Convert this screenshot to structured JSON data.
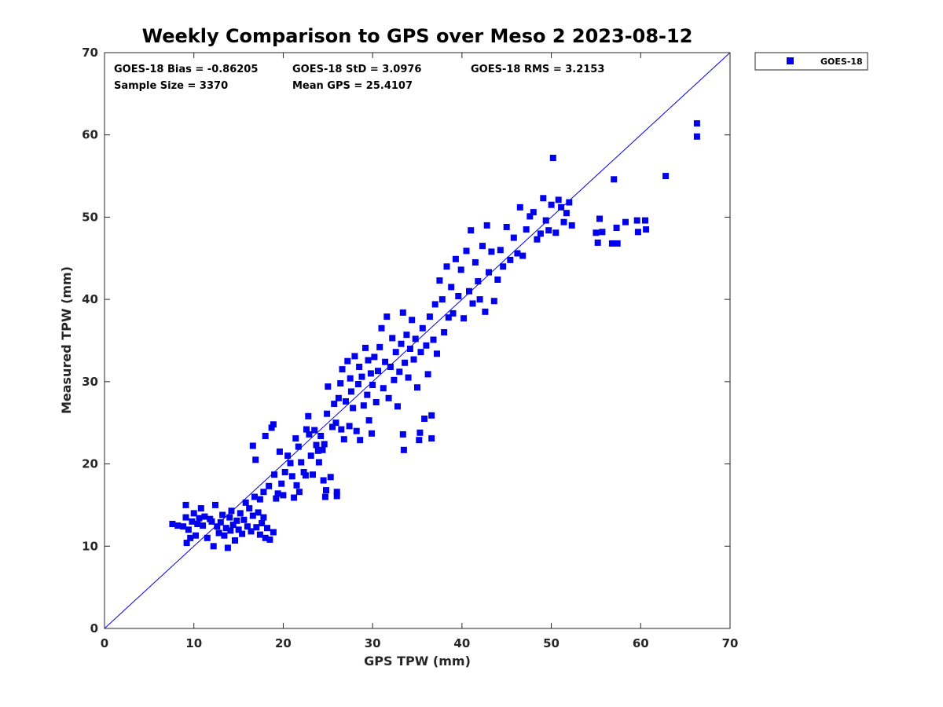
{
  "chart_data": {
    "type": "scatter",
    "title": "Weekly Comparison to GPS over Meso 2 2023-08-12",
    "xlabel": "GPS TPW (mm)",
    "ylabel": "Measured TPW (mm)",
    "xlim": [
      0,
      70
    ],
    "ylim": [
      0,
      70
    ],
    "xticks": [
      "0",
      "10",
      "20",
      "30",
      "40",
      "50",
      "60",
      "70"
    ],
    "yticks": [
      "0",
      "10",
      "20",
      "30",
      "40",
      "50",
      "60",
      "70"
    ],
    "grid": false,
    "legend": {
      "position": "outside-top-right",
      "entries": [
        "GOES-18"
      ]
    },
    "stats": {
      "bias": "GOES-18 Bias = -0.86205",
      "std": "GOES-18 StD = 3.0976",
      "rms": "GOES-18 RMS = 3.2153",
      "sample": "Sample Size = 3370",
      "mean": "Mean GPS = 25.4107"
    },
    "reference_line": {
      "label": "1:1",
      "x": [
        0,
        70
      ],
      "y": [
        0,
        70
      ]
    },
    "series": [
      {
        "name": "GOES-18",
        "color": "#0000ee",
        "marker": "square",
        "points": [
          [
            7.6,
            12.7
          ],
          [
            8.2,
            12.5
          ],
          [
            8.8,
            12.4
          ],
          [
            9.1,
            15.0
          ],
          [
            9.1,
            13.5
          ],
          [
            9.2,
            10.4
          ],
          [
            9.4,
            12.0
          ],
          [
            9.6,
            11.0
          ],
          [
            9.8,
            13.0
          ],
          [
            10.0,
            14.0
          ],
          [
            10.2,
            11.3
          ],
          [
            10.4,
            12.7
          ],
          [
            10.6,
            13.4
          ],
          [
            10.8,
            14.6
          ],
          [
            11.0,
            12.5
          ],
          [
            11.2,
            13.6
          ],
          [
            11.5,
            11.0
          ],
          [
            11.8,
            13.3
          ],
          [
            12.0,
            13.0
          ],
          [
            12.2,
            10.0
          ],
          [
            12.4,
            15.0
          ],
          [
            12.6,
            12.4
          ],
          [
            12.8,
            11.6
          ],
          [
            13.0,
            12.9
          ],
          [
            13.2,
            13.8
          ],
          [
            13.4,
            11.3
          ],
          [
            13.6,
            12.2
          ],
          [
            13.8,
            9.8
          ],
          [
            14.0,
            13.5
          ],
          [
            14.1,
            11.9
          ],
          [
            14.2,
            14.3
          ],
          [
            14.4,
            12.6
          ],
          [
            14.6,
            10.7
          ],
          [
            14.8,
            13.1
          ],
          [
            15.0,
            12.0
          ],
          [
            15.2,
            14.0
          ],
          [
            15.4,
            11.5
          ],
          [
            15.6,
            13.2
          ],
          [
            15.8,
            15.3
          ],
          [
            16.0,
            12.4
          ],
          [
            16.2,
            14.6
          ],
          [
            16.4,
            11.8
          ],
          [
            16.6,
            13.7
          ],
          [
            16.8,
            16.0
          ],
          [
            17.0,
            12.3
          ],
          [
            17.2,
            14.1
          ],
          [
            17.4,
            11.4
          ],
          [
            17.6,
            12.8
          ],
          [
            17.8,
            13.5
          ],
          [
            18.0,
            11.0
          ],
          [
            18.2,
            12.2
          ],
          [
            18.5,
            10.8
          ],
          [
            18.9,
            11.7
          ],
          [
            16.6,
            22.2
          ],
          [
            16.9,
            20.5
          ],
          [
            17.4,
            15.7
          ],
          [
            17.8,
            16.6
          ],
          [
            18.0,
            23.4
          ],
          [
            18.4,
            17.3
          ],
          [
            18.7,
            24.4
          ],
          [
            18.9,
            24.8
          ],
          [
            19.0,
            18.7
          ],
          [
            19.2,
            15.8
          ],
          [
            19.4,
            16.4
          ],
          [
            19.6,
            21.5
          ],
          [
            19.8,
            17.6
          ],
          [
            20.0,
            16.2
          ],
          [
            20.2,
            19.0
          ],
          [
            20.5,
            21.0
          ],
          [
            20.8,
            20.1
          ],
          [
            21.0,
            18.5
          ],
          [
            21.2,
            15.9
          ],
          [
            21.4,
            23.1
          ],
          [
            21.5,
            17.4
          ],
          [
            21.7,
            22.1
          ],
          [
            21.8,
            16.6
          ],
          [
            22.0,
            20.2
          ],
          [
            22.3,
            19.0
          ],
          [
            22.5,
            18.6
          ],
          [
            22.6,
            24.2
          ],
          [
            22.8,
            25.8
          ],
          [
            22.9,
            23.6
          ],
          [
            23.1,
            21.0
          ],
          [
            23.3,
            18.7
          ],
          [
            23.5,
            24.1
          ],
          [
            23.7,
            22.3
          ],
          [
            23.9,
            21.6
          ],
          [
            24.0,
            20.2
          ],
          [
            24.2,
            23.4
          ],
          [
            24.4,
            21.7
          ],
          [
            24.5,
            18.0
          ],
          [
            24.6,
            22.4
          ],
          [
            24.7,
            16.0
          ],
          [
            24.8,
            16.8
          ],
          [
            24.9,
            26.1
          ],
          [
            25.0,
            29.4
          ],
          [
            25.3,
            18.4
          ],
          [
            25.5,
            24.5
          ],
          [
            25.7,
            27.3
          ],
          [
            25.9,
            25.0
          ],
          [
            26.0,
            16.1
          ],
          [
            26.0,
            16.6
          ],
          [
            26.2,
            28.0
          ],
          [
            26.4,
            29.8
          ],
          [
            26.5,
            24.2
          ],
          [
            26.6,
            31.5
          ],
          [
            26.8,
            23.0
          ],
          [
            27.0,
            27.6
          ],
          [
            27.2,
            32.5
          ],
          [
            27.4,
            24.6
          ],
          [
            27.5,
            30.4
          ],
          [
            27.6,
            28.8
          ],
          [
            27.8,
            26.8
          ],
          [
            28.0,
            33.1
          ],
          [
            28.2,
            24.0
          ],
          [
            28.4,
            29.7
          ],
          [
            28.5,
            31.8
          ],
          [
            28.6,
            22.9
          ],
          [
            28.8,
            30.6
          ],
          [
            29.0,
            27.1
          ],
          [
            29.2,
            34.1
          ],
          [
            29.4,
            28.4
          ],
          [
            29.5,
            32.6
          ],
          [
            29.6,
            25.3
          ],
          [
            29.8,
            31.0
          ],
          [
            29.9,
            23.7
          ],
          [
            30.0,
            29.6
          ],
          [
            30.2,
            33.0
          ],
          [
            30.4,
            27.5
          ],
          [
            30.6,
            31.3
          ],
          [
            30.8,
            34.2
          ],
          [
            31.0,
            36.5
          ],
          [
            31.2,
            29.2
          ],
          [
            31.4,
            32.4
          ],
          [
            31.6,
            37.9
          ],
          [
            31.8,
            28.0
          ],
          [
            32.0,
            31.8
          ],
          [
            32.2,
            35.3
          ],
          [
            32.4,
            30.2
          ],
          [
            32.6,
            33.6
          ],
          [
            32.8,
            27.0
          ],
          [
            33.0,
            31.2
          ],
          [
            33.2,
            34.6
          ],
          [
            33.4,
            38.4
          ],
          [
            33.6,
            32.3
          ],
          [
            33.8,
            35.7
          ],
          [
            33.4,
            23.6
          ],
          [
            33.5,
            21.7
          ],
          [
            34.0,
            30.5
          ],
          [
            34.2,
            34.0
          ],
          [
            34.4,
            37.5
          ],
          [
            34.6,
            32.7
          ],
          [
            34.8,
            35.2
          ],
          [
            35.0,
            29.3
          ],
          [
            35.2,
            22.9
          ],
          [
            35.3,
            23.8
          ],
          [
            35.4,
            33.6
          ],
          [
            35.6,
            36.5
          ],
          [
            35.8,
            25.5
          ],
          [
            36.0,
            34.4
          ],
          [
            36.2,
            30.9
          ],
          [
            36.4,
            37.9
          ],
          [
            36.6,
            23.1
          ],
          [
            36.6,
            25.9
          ],
          [
            36.8,
            35.1
          ],
          [
            37.0,
            39.4
          ],
          [
            37.2,
            33.4
          ],
          [
            37.5,
            42.3
          ],
          [
            37.8,
            40.0
          ],
          [
            38.0,
            36.0
          ],
          [
            38.3,
            44.0
          ],
          [
            38.5,
            37.8
          ],
          [
            38.8,
            41.5
          ],
          [
            39.0,
            38.3
          ],
          [
            39.3,
            44.9
          ],
          [
            39.6,
            40.4
          ],
          [
            39.9,
            43.6
          ],
          [
            40.2,
            37.7
          ],
          [
            40.5,
            45.9
          ],
          [
            40.8,
            41.0
          ],
          [
            41.0,
            48.4
          ],
          [
            41.2,
            39.5
          ],
          [
            41.5,
            44.5
          ],
          [
            41.8,
            42.2
          ],
          [
            42.0,
            40.0
          ],
          [
            42.3,
            46.5
          ],
          [
            42.6,
            38.5
          ],
          [
            42.8,
            49.0
          ],
          [
            43.0,
            43.3
          ],
          [
            43.3,
            45.8
          ],
          [
            43.6,
            39.8
          ],
          [
            44.0,
            42.4
          ],
          [
            44.3,
            46.0
          ],
          [
            44.6,
            44.0
          ],
          [
            45.0,
            48.8
          ],
          [
            45.4,
            44.8
          ],
          [
            45.8,
            47.5
          ],
          [
            46.2,
            45.6
          ],
          [
            46.5,
            51.2
          ],
          [
            46.8,
            45.3
          ],
          [
            47.2,
            48.5
          ],
          [
            47.6,
            50.1
          ],
          [
            48.0,
            50.6
          ],
          [
            48.4,
            47.3
          ],
          [
            48.8,
            48.0
          ],
          [
            49.1,
            52.3
          ],
          [
            49.4,
            49.6
          ],
          [
            49.7,
            48.4
          ],
          [
            50.0,
            51.5
          ],
          [
            50.2,
            57.2
          ],
          [
            50.5,
            48.1
          ],
          [
            50.8,
            52.1
          ],
          [
            51.1,
            51.2
          ],
          [
            51.4,
            49.4
          ],
          [
            51.7,
            50.5
          ],
          [
            52.0,
            51.8
          ],
          [
            52.3,
            49.0
          ],
          [
            55.0,
            48.1
          ],
          [
            55.2,
            46.9
          ],
          [
            55.4,
            49.8
          ],
          [
            55.7,
            48.2
          ],
          [
            56.8,
            46.8
          ],
          [
            57.0,
            54.6
          ],
          [
            57.3,
            48.7
          ],
          [
            57.4,
            46.8
          ],
          [
            58.3,
            49.4
          ],
          [
            59.6,
            49.6
          ],
          [
            59.7,
            48.2
          ],
          [
            60.5,
            49.6
          ],
          [
            60.6,
            48.5
          ],
          [
            62.8,
            55.0
          ],
          [
            66.3,
            61.4
          ],
          [
            66.3,
            59.8
          ]
        ]
      }
    ]
  }
}
